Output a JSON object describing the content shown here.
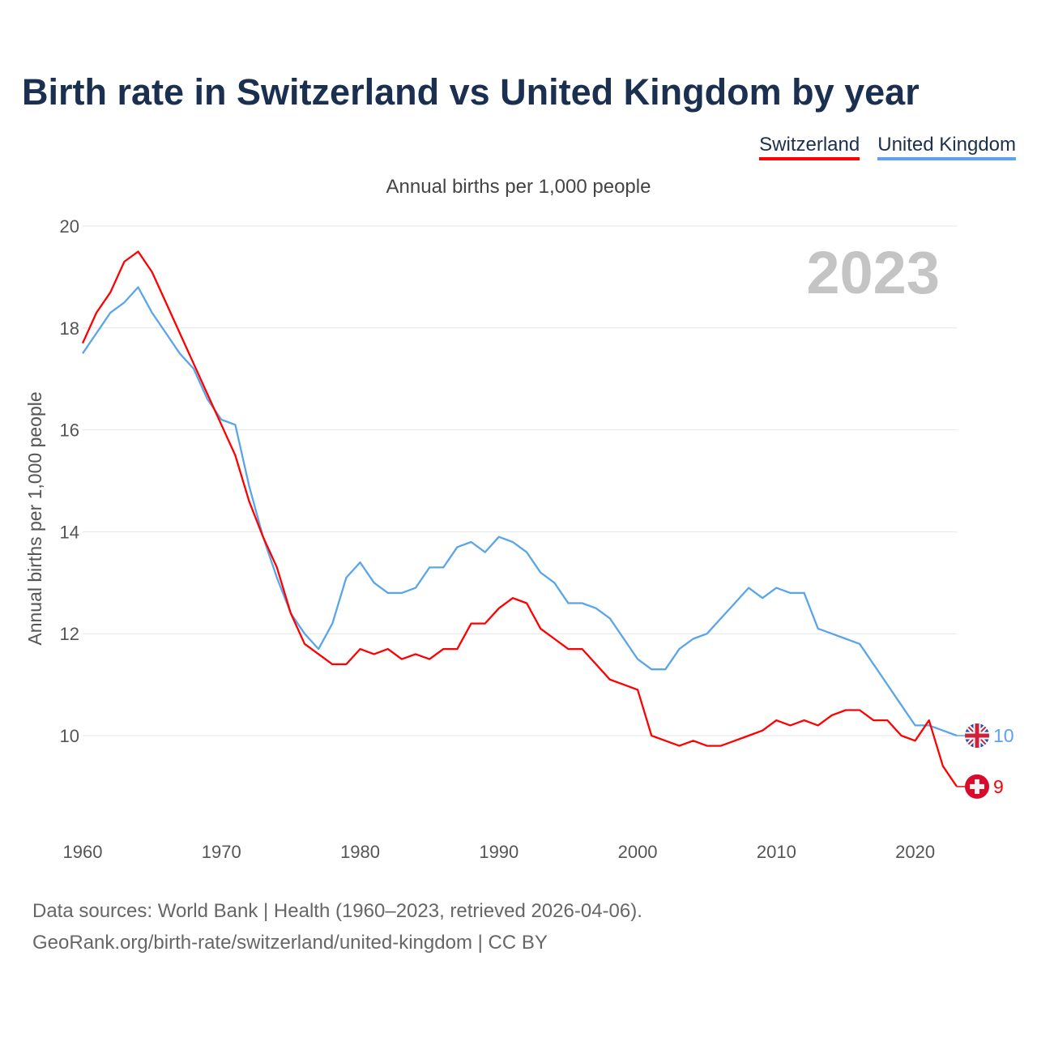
{
  "chart_data": {
    "type": "line",
    "title": "Birth rate in Switzerland vs United Kingdom by year",
    "subtitle": "Annual births per 1,000 people",
    "ylabel": "Annual births per 1,000 people",
    "xlabel": "",
    "xlim": [
      1960,
      2023
    ],
    "ylim": [
      8.3,
      20
    ],
    "yticks": [
      10,
      12,
      14,
      16,
      18,
      20
    ],
    "xticks": [
      1960,
      1970,
      1980,
      1990,
      2000,
      2010,
      2020
    ],
    "grid": true,
    "legend_position": "top-right",
    "year_watermark": "2023",
    "x": [
      1960,
      1961,
      1962,
      1963,
      1964,
      1965,
      1966,
      1967,
      1968,
      1969,
      1970,
      1971,
      1972,
      1973,
      1974,
      1975,
      1976,
      1977,
      1978,
      1979,
      1980,
      1981,
      1982,
      1983,
      1984,
      1985,
      1986,
      1987,
      1988,
      1989,
      1990,
      1991,
      1992,
      1993,
      1994,
      1995,
      1996,
      1997,
      1998,
      1999,
      2000,
      2001,
      2002,
      2003,
      2004,
      2005,
      2006,
      2007,
      2008,
      2009,
      2010,
      2011,
      2012,
      2013,
      2014,
      2015,
      2016,
      2017,
      2018,
      2019,
      2020,
      2021,
      2022,
      2023
    ],
    "series": [
      {
        "name": "Switzerland",
        "color": "#ff0000",
        "end_label": "9",
        "flag_icon": "switzerland-flag-icon",
        "values": [
          17.7,
          18.3,
          18.7,
          19.3,
          19.5,
          19.1,
          18.5,
          17.9,
          17.3,
          16.7,
          16.1,
          15.5,
          14.6,
          13.9,
          13.3,
          12.4,
          11.8,
          11.6,
          11.4,
          11.4,
          11.7,
          11.6,
          11.7,
          11.5,
          11.6,
          11.5,
          11.7,
          11.7,
          12.2,
          12.2,
          12.5,
          12.7,
          12.6,
          12.1,
          11.9,
          11.7,
          11.7,
          11.4,
          11.1,
          11.0,
          10.9,
          10.0,
          9.9,
          9.8,
          9.9,
          9.8,
          9.8,
          9.9,
          10.0,
          10.1,
          10.3,
          10.2,
          10.3,
          10.2,
          10.4,
          10.5,
          10.5,
          10.3,
          10.3,
          10.0,
          9.9,
          10.3,
          9.4,
          9.0
        ]
      },
      {
        "name": "United Kingdom",
        "color": "#5aa5ea",
        "end_label": "10",
        "flag_icon": "uk-flag-icon",
        "values": [
          17.5,
          17.9,
          18.3,
          18.5,
          18.8,
          18.3,
          17.9,
          17.5,
          17.2,
          16.6,
          16.2,
          16.1,
          14.9,
          13.9,
          13.1,
          12.4,
          12.0,
          11.7,
          12.2,
          13.1,
          13.4,
          13.0,
          12.8,
          12.8,
          12.9,
          13.3,
          13.3,
          13.7,
          13.8,
          13.6,
          13.9,
          13.8,
          13.6,
          13.2,
          13.0,
          12.6,
          12.6,
          12.5,
          12.3,
          11.9,
          11.5,
          11.3,
          11.3,
          11.7,
          11.9,
          12.0,
          12.3,
          12.6,
          12.9,
          12.7,
          12.9,
          12.8,
          12.8,
          12.1,
          12.0,
          11.9,
          11.8,
          11.4,
          11.0,
          10.6,
          10.2,
          10.2,
          10.1,
          10.0
        ]
      }
    ]
  },
  "source": {
    "line1": "Data sources: World Bank | Health (1960–2023, retrieved 2026-04-06).",
    "line2": "GeoRank.org/birth-rate/switzerland/united-kingdom | CC BY"
  }
}
